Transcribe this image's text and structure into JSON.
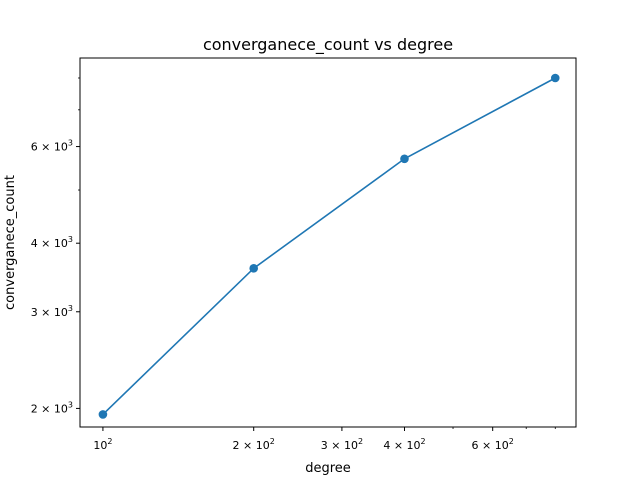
{
  "chart_data": {
    "type": "line",
    "title": "converganece_count vs degree",
    "xlabel": "degree",
    "ylabel": "converganece_count",
    "xscale": "log",
    "yscale": "log",
    "xlim": [
      90,
      880
    ],
    "ylim": [
      1850,
      8700
    ],
    "grid": false,
    "legend": "none",
    "line_color": "#1f77b4",
    "series": [
      {
        "x": [
          100,
          200,
          400,
          800
        ],
        "y": [
          1950,
          3600,
          5700,
          8000
        ]
      }
    ],
    "x_major_ticks": [
      {
        "value": 100,
        "label": "10",
        "exp": "2",
        "mult": ""
      },
      {
        "value": 200,
        "label": "10",
        "exp": "2",
        "mult": "2 × "
      },
      {
        "value": 300,
        "label": "10",
        "exp": "2",
        "mult": "3 × "
      },
      {
        "value": 400,
        "label": "10",
        "exp": "2",
        "mult": "4 × "
      },
      {
        "value": 600,
        "label": "10",
        "exp": "2",
        "mult": "6 × "
      }
    ],
    "x_minor_ticks": [
      500,
      700,
      800
    ],
    "y_major_ticks": [
      {
        "value": 2000,
        "label": "10",
        "exp": "3",
        "mult": "2 × "
      },
      {
        "value": 3000,
        "label": "10",
        "exp": "3",
        "mult": "3 × "
      },
      {
        "value": 4000,
        "label": "10",
        "exp": "3",
        "mult": "4 × "
      },
      {
        "value": 6000,
        "label": "10",
        "exp": "3",
        "mult": "6 × "
      }
    ],
    "y_minor_ticks": [
      5000,
      7000,
      8000
    ]
  }
}
